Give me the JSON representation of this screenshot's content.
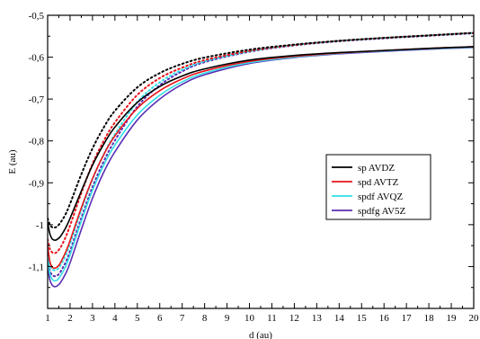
{
  "chart_data": {
    "type": "line",
    "title": "",
    "xlabel": "d (au)",
    "ylabel": "E (au)",
    "xlim": [
      1,
      20
    ],
    "ylim": [
      -1.2,
      -0.5
    ],
    "xticks": [
      1,
      2,
      3,
      4,
      5,
      6,
      7,
      8,
      9,
      10,
      11,
      12,
      13,
      14,
      15,
      16,
      17,
      18,
      19,
      20
    ],
    "yticks": [
      -1.2,
      -1.1,
      -1.0,
      -0.9,
      -0.8,
      -0.7,
      -0.6,
      -0.5
    ],
    "ytick_labels": [
      "",
      "-1,1",
      "-1",
      "-0,9",
      "-0,8",
      "-0,7",
      "-0,6",
      "-0,5"
    ],
    "grid": false,
    "legend_position": "center-right",
    "series": [
      {
        "name": "sp AVDZ",
        "color": "#000000",
        "solid": {
          "x": [
            1.0,
            1.1,
            1.2,
            1.3,
            1.4,
            1.5,
            1.6,
            1.8,
            2.0,
            2.5,
            3.0,
            3.5,
            4.0,
            5.0,
            6.0,
            7.0,
            8.0,
            10.0,
            12.0,
            14.0,
            16.0,
            18.0,
            20.0
          ],
          "y": [
            -0.995,
            -1.022,
            -1.034,
            -1.037,
            -1.036,
            -1.032,
            -1.026,
            -1.008,
            -0.985,
            -0.92,
            -0.858,
            -0.808,
            -0.767,
            -0.708,
            -0.67,
            -0.645,
            -0.628,
            -0.607,
            -0.596,
            -0.589,
            -0.584,
            -0.579,
            -0.575
          ]
        },
        "dotted": {
          "x": [
            1.0,
            1.1,
            1.2,
            1.3,
            1.4,
            1.5,
            1.6,
            1.8,
            2.0,
            2.5,
            3.0,
            3.5,
            4.0,
            5.0,
            6.0,
            7.0,
            8.0,
            10.0,
            12.0,
            14.0,
            16.0,
            18.0,
            20.0
          ],
          "y": [
            -0.985,
            -1.0,
            -1.006,
            -1.007,
            -1.005,
            -1.0,
            -0.993,
            -0.975,
            -0.95,
            -0.88,
            -0.818,
            -0.768,
            -0.728,
            -0.672,
            -0.638,
            -0.616,
            -0.601,
            -0.582,
            -0.57,
            -0.561,
            -0.554,
            -0.548,
            -0.542
          ]
        }
      },
      {
        "name": "spd AVTZ",
        "color": "#e8141a",
        "solid": {
          "x": [
            1.0,
            1.1,
            1.2,
            1.3,
            1.4,
            1.5,
            1.6,
            1.8,
            2.0,
            2.5,
            3.0,
            3.5,
            4.0,
            5.0,
            6.0,
            7.0,
            8.0,
            10.0,
            12.0,
            14.0,
            16.0,
            18.0,
            20.0
          ],
          "y": [
            -1.05,
            -1.088,
            -1.101,
            -1.104,
            -1.102,
            -1.097,
            -1.088,
            -1.066,
            -1.038,
            -0.96,
            -0.89,
            -0.833,
            -0.788,
            -0.722,
            -0.68,
            -0.652,
            -0.633,
            -0.61,
            -0.598,
            -0.59,
            -0.584,
            -0.579,
            -0.575
          ]
        },
        "dotted": {
          "x": [
            1.0,
            1.1,
            1.2,
            1.3,
            1.4,
            1.5,
            1.6,
            1.8,
            2.0,
            2.5,
            3.0,
            3.5,
            4.0,
            5.0,
            6.0,
            7.0,
            8.0,
            10.0,
            12.0,
            14.0,
            16.0,
            18.0,
            20.0
          ],
          "y": [
            -1.035,
            -1.058,
            -1.066,
            -1.068,
            -1.066,
            -1.06,
            -1.052,
            -1.03,
            -1.002,
            -0.925,
            -0.855,
            -0.8,
            -0.756,
            -0.69,
            -0.65,
            -0.625,
            -0.607,
            -0.585,
            -0.571,
            -0.561,
            -0.554,
            -0.548,
            -0.542
          ]
        }
      },
      {
        "name": "spdf AVQZ",
        "color": "#33e0e6",
        "solid": {
          "x": [
            1.0,
            1.1,
            1.2,
            1.3,
            1.4,
            1.5,
            1.6,
            1.8,
            2.0,
            2.5,
            3.0,
            3.5,
            4.0,
            5.0,
            6.0,
            7.0,
            8.0,
            10.0,
            12.0,
            14.0,
            16.0,
            18.0,
            20.0
          ],
          "y": [
            -1.085,
            -1.118,
            -1.13,
            -1.134,
            -1.133,
            -1.128,
            -1.12,
            -1.1,
            -1.072,
            -0.992,
            -0.918,
            -0.858,
            -0.81,
            -0.738,
            -0.691,
            -0.659,
            -0.638,
            -0.613,
            -0.6,
            -0.591,
            -0.585,
            -0.58,
            -0.576
          ]
        },
        "dotted": {
          "x": [
            1.0,
            1.1,
            1.2,
            1.3,
            1.4,
            1.5,
            1.6,
            1.8,
            2.0,
            2.5,
            3.0,
            3.5,
            4.0,
            5.0,
            6.0,
            7.0,
            8.0,
            10.0,
            12.0,
            14.0,
            16.0,
            18.0,
            20.0
          ],
          "y": [
            -1.07,
            -1.096,
            -1.106,
            -1.109,
            -1.108,
            -1.103,
            -1.095,
            -1.074,
            -1.046,
            -0.966,
            -0.892,
            -0.832,
            -0.784,
            -0.707,
            -0.66,
            -0.63,
            -0.61,
            -0.586,
            -0.571,
            -0.561,
            -0.554,
            -0.548,
            -0.542
          ]
        }
      },
      {
        "name": "spdfg AV5Z",
        "color": "#5a2db4",
        "solid": {
          "x": [
            1.0,
            1.1,
            1.2,
            1.3,
            1.4,
            1.5,
            1.6,
            1.8,
            2.0,
            2.5,
            3.0,
            3.5,
            4.0,
            5.0,
            6.0,
            7.0,
            8.0,
            10.0,
            12.0,
            14.0,
            16.0,
            18.0,
            20.0
          ],
          "y": [
            -1.1,
            -1.132,
            -1.144,
            -1.148,
            -1.147,
            -1.143,
            -1.136,
            -1.117,
            -1.091,
            -1.012,
            -0.937,
            -0.875,
            -0.826,
            -0.75,
            -0.7,
            -0.665,
            -0.642,
            -0.615,
            -0.601,
            -0.592,
            -0.586,
            -0.581,
            -0.577
          ]
        },
        "dotted": {
          "x": [
            1.0,
            1.1,
            1.2,
            1.3,
            1.4,
            1.5,
            1.6,
            1.8,
            2.0,
            2.5,
            3.0,
            3.5,
            4.0,
            5.0,
            6.0,
            7.0,
            8.0,
            10.0,
            12.0,
            14.0,
            16.0,
            18.0,
            20.0
          ],
          "y": [
            -1.085,
            -1.11,
            -1.12,
            -1.123,
            -1.122,
            -1.118,
            -1.11,
            -1.09,
            -1.063,
            -0.984,
            -0.91,
            -0.849,
            -0.799,
            -0.718,
            -0.667,
            -0.634,
            -0.612,
            -0.587,
            -0.572,
            -0.562,
            -0.555,
            -0.549,
            -0.543
          ]
        }
      }
    ]
  }
}
